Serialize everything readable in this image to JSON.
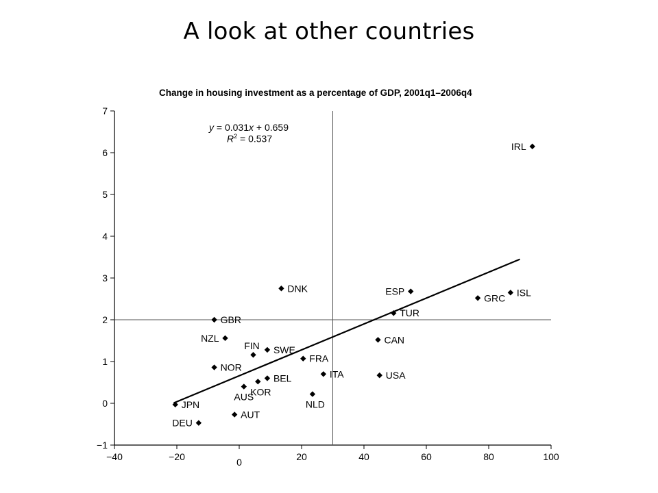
{
  "slide": {
    "title": "A look at other countries"
  },
  "chart_data": {
    "type": "scatter",
    "title": "Change in housing investment as a percentage of GDP, 2001q1–2006q4",
    "xlabel": "",
    "ylabel": "",
    "xlim": [
      -40,
      100
    ],
    "ylim": [
      -1,
      7
    ],
    "x_ticks": [
      -40,
      -20,
      0,
      20,
      40,
      60,
      80,
      100
    ],
    "x_tick_labels": [
      "−40",
      "−20",
      "0",
      "20",
      "40",
      "60",
      "80",
      "100"
    ],
    "y_ticks": [
      -1,
      0,
      1,
      2,
      3,
      4,
      5,
      6,
      7
    ],
    "y_tick_labels": [
      "−1",
      "0",
      "1",
      "2",
      "3",
      "4",
      "5",
      "6",
      "7"
    ],
    "reference_lines": {
      "vertical_x": 30,
      "horizontal_y": 2
    },
    "regression": {
      "slope": 0.031,
      "intercept": 0.659,
      "x_range": [
        -21,
        90
      ],
      "equation_y": "y",
      "equation_rest": " = 0.031",
      "equation_x": "x",
      "equation_tail": " + 0.659",
      "r2_label": "R",
      "r2_sup": "2",
      "r2_value": " = 0.537"
    },
    "points": [
      {
        "label": "IRL",
        "x": 94,
        "y": 6.15,
        "side": "left"
      },
      {
        "label": "ISL",
        "x": 87,
        "y": 2.65,
        "side": "right"
      },
      {
        "label": "GRC",
        "x": 76.5,
        "y": 2.52,
        "side": "right"
      },
      {
        "label": "ESP",
        "x": 55,
        "y": 2.68,
        "side": "left"
      },
      {
        "label": "TUR",
        "x": 49.5,
        "y": 2.16,
        "side": "right"
      },
      {
        "label": "CAN",
        "x": 44.5,
        "y": 1.52,
        "side": "right"
      },
      {
        "label": "USA",
        "x": 45,
        "y": 0.67,
        "side": "right"
      },
      {
        "label": "DNK",
        "x": 13.5,
        "y": 2.75,
        "side": "right"
      },
      {
        "label": "GBR",
        "x": -8,
        "y": 2.0,
        "side": "right"
      },
      {
        "label": "NZL",
        "x": -4.5,
        "y": 1.56,
        "side": "left"
      },
      {
        "label": "FIN",
        "x": 4.5,
        "y": 1.16,
        "side": "up"
      },
      {
        "label": "SWE",
        "x": 9,
        "y": 1.28,
        "side": "right"
      },
      {
        "label": "FRA",
        "x": 20.5,
        "y": 1.07,
        "side": "right"
      },
      {
        "label": "ITA",
        "x": 27,
        "y": 0.7,
        "side": "right"
      },
      {
        "label": "NOR",
        "x": -8,
        "y": 0.86,
        "side": "right"
      },
      {
        "label": "BEL",
        "x": 9,
        "y": 0.6,
        "side": "right"
      },
      {
        "label": "KOR",
        "x": 6,
        "y": 0.52,
        "side": "down"
      },
      {
        "label": "AUS",
        "x": 1.5,
        "y": 0.4,
        "side": "downleft"
      },
      {
        "label": "NLD",
        "x": 23.5,
        "y": 0.22,
        "side": "down"
      },
      {
        "label": "JPN",
        "x": -20.5,
        "y": -0.03,
        "side": "right"
      },
      {
        "label": "AUT",
        "x": -1.5,
        "y": -0.27,
        "side": "right"
      },
      {
        "label": "DEU",
        "x": -13,
        "y": -0.47,
        "side": "left"
      }
    ],
    "grid": false,
    "legend": "none",
    "marker_color": "#000000",
    "line_color": "#000000"
  }
}
